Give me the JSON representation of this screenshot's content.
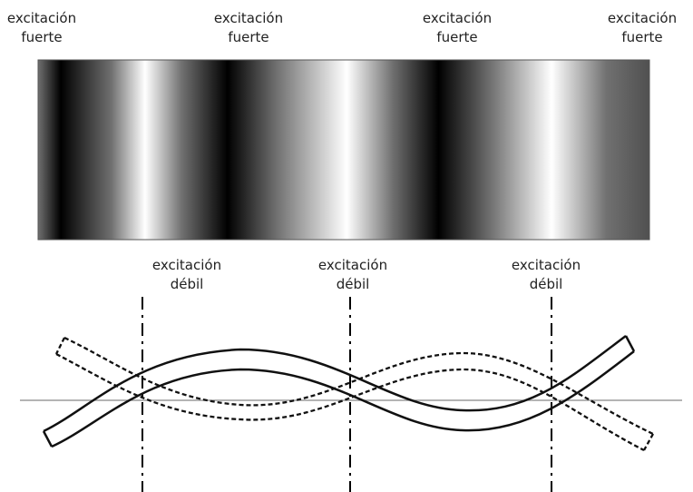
{
  "top_labels": [
    {
      "line1": "excitación",
      "line2": "fuerte"
    },
    {
      "line1": "excitación",
      "line2": "fuerte"
    },
    {
      "line1": "excitación",
      "line2": "fuerte"
    },
    {
      "line1": "excitación",
      "line2": "fuerte"
    }
  ],
  "middle_labels": [
    {
      "line1": "excitación",
      "line2": "débil"
    },
    {
      "line1": "excitación",
      "line2": "débil"
    },
    {
      "line1": "excitación",
      "line2": "débil"
    }
  ],
  "colors": {
    "dark": "#000000",
    "light": "#ffffff",
    "axis_line": "#888888",
    "ink": "#111111"
  }
}
